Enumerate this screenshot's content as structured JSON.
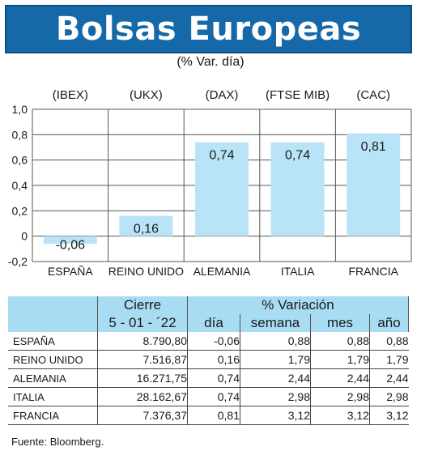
{
  "title": "Bolsas Europeas",
  "subtitle": "(% Var. día)",
  "chart_data": {
    "type": "bar",
    "categories": [
      "ESPAÑA",
      "REINO UNIDO",
      "ALEMANIA",
      "ITALIA",
      "FRANCIA"
    ],
    "indices": [
      "(IBEX)",
      "(UKX)",
      "(DAX)",
      "(FTSE MIB)",
      "(CAC)"
    ],
    "values": [
      -0.06,
      0.16,
      0.74,
      0.74,
      0.81
    ],
    "value_labels": [
      "-0,06",
      "0,16",
      "0,74",
      "0,74",
      "0,81"
    ],
    "ylim": [
      -0.2,
      1.0
    ],
    "yticks": [
      -0.2,
      0,
      0.2,
      0.4,
      0.6,
      0.8,
      1.0
    ],
    "ytick_labels": [
      "-0,2",
      "0",
      "0,2",
      "0,4",
      "0,6",
      "0,8",
      "1,0"
    ],
    "grid": true,
    "colors": {
      "bar": "#b9e4f7",
      "grid": "#555555"
    }
  },
  "table": {
    "header_cierre": "Cierre",
    "header_variacion": "% Variación",
    "date": "5 - 01 - ´22",
    "col_dia": "día",
    "col_semana": "semana",
    "col_mes": "mes",
    "col_ano": "año",
    "rows": [
      {
        "country": "ESPAÑA",
        "cierre": "8.790,80",
        "dia": "-0,06",
        "semana": "0,88",
        "mes": "0,88",
        "ano": "0,88"
      },
      {
        "country": "REINO UNIDO",
        "cierre": "7.516,87",
        "dia": "0,16",
        "semana": "1,79",
        "mes": "1,79",
        "ano": "1,79"
      },
      {
        "country": "ALEMANIA",
        "cierre": "16.271,75",
        "dia": "0,74",
        "semana": "2,44",
        "mes": "2,44",
        "ano": "2,44"
      },
      {
        "country": "ITALIA",
        "cierre": "28.162,67",
        "dia": "0,74",
        "semana": "2,98",
        "mes": "2,98",
        "ano": "2,98"
      },
      {
        "country": "FRANCIA",
        "cierre": "7.376,37",
        "dia": "0,81",
        "semana": "3,12",
        "mes": "3,12",
        "ano": "3,12"
      }
    ]
  },
  "source": "Fuente: Bloomberg.",
  "colors": {
    "banner": "#1569a8",
    "header": "#a8dcf2"
  }
}
